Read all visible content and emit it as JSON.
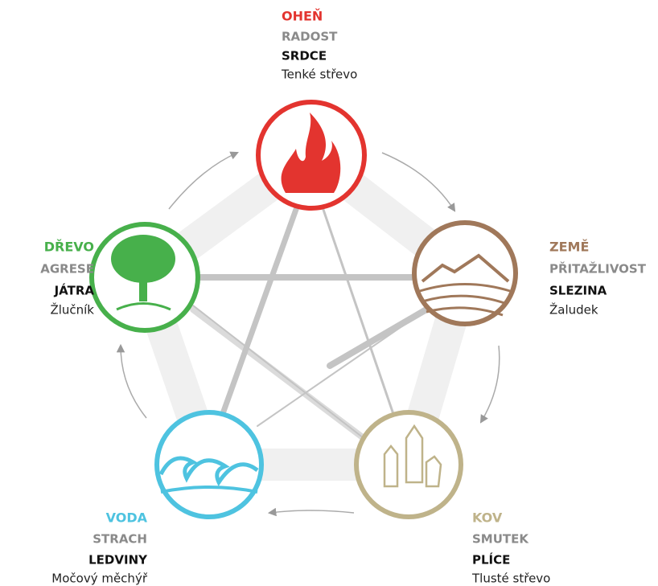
{
  "nodes": [
    {
      "element": "OHEŇ",
      "emotion": "RADOST",
      "organ": "SRDCE",
      "secondary": "Tenké střevo"
    },
    {
      "element": "ZEMĚ",
      "emotion": "PŘITAŽLIVOST",
      "organ": "SLEZINA",
      "secondary": "Žaludek"
    },
    {
      "element": "KOV",
      "emotion": "SMUTEK",
      "organ": "PLÍCE",
      "secondary": "Tlusté střevo"
    },
    {
      "element": "VODA",
      "emotion": "STRACH",
      "organ": "LEDVINY",
      "secondary": "Močový měchýř"
    },
    {
      "element": "DŘEVO",
      "emotion": "AGRESE",
      "organ": "JÁTRA",
      "secondary": "Žlučník"
    }
  ]
}
